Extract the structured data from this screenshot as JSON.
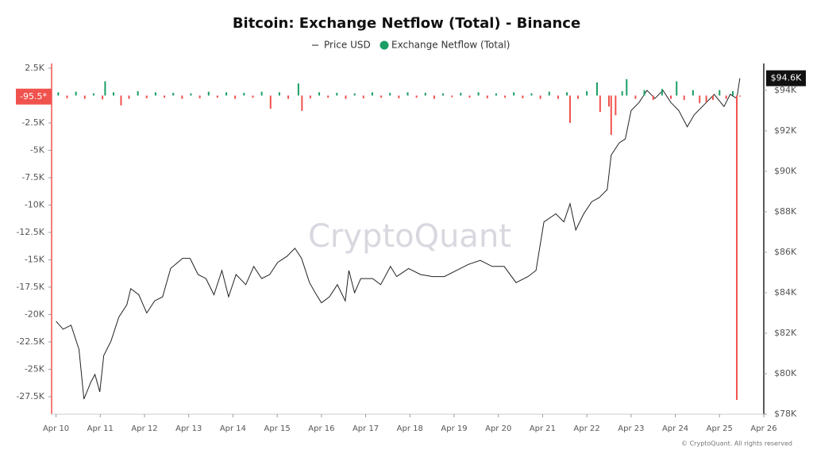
{
  "chart_data": {
    "type": "bar-line",
    "title": "Bitcoin: Exchange Netflow (Total) - Binance",
    "watermark": "CryptoQuant",
    "footer": "© CryptoQuant. All rights reserved",
    "xlim": [
      9.9,
      26
    ],
    "xticks": [
      {
        "value": 10,
        "label": "Apr 10"
      },
      {
        "value": 11,
        "label": "Apr 11"
      },
      {
        "value": 12,
        "label": "Apr 12"
      },
      {
        "value": 13,
        "label": "Apr 13"
      },
      {
        "value": 14,
        "label": "Apr 14"
      },
      {
        "value": 15,
        "label": "Apr 15"
      },
      {
        "value": 16,
        "label": "Apr 16"
      },
      {
        "value": 17,
        "label": "Apr 17"
      },
      {
        "value": 18,
        "label": "Apr 18"
      },
      {
        "value": 19,
        "label": "Apr 19"
      },
      {
        "value": 20,
        "label": "Apr 20"
      },
      {
        "value": 21,
        "label": "Apr 21"
      },
      {
        "value": 22,
        "label": "Apr 22"
      },
      {
        "value": 23,
        "label": "Apr 23"
      },
      {
        "value": 24,
        "label": "Apr 24"
      },
      {
        "value": 25,
        "label": "Apr 25"
      },
      {
        "value": 26,
        "label": "Apr 26"
      }
    ],
    "ylim": [
      -29100,
      2930
    ],
    "yticks": [
      {
        "value": 2500,
        "label": "2.5K"
      },
      {
        "value": -2500,
        "label": "-2.5K"
      },
      {
        "value": -5000,
        "label": "-5K"
      },
      {
        "value": -7500,
        "label": "-7.5K"
      },
      {
        "value": -10000,
        "label": "-10K"
      },
      {
        "value": -12500,
        "label": "-12.5K"
      },
      {
        "value": -15000,
        "label": "-15K"
      },
      {
        "value": -17500,
        "label": "-17.5K"
      },
      {
        "value": -20000,
        "label": "-20K"
      },
      {
        "value": -22500,
        "label": "-22.5K"
      },
      {
        "value": -25000,
        "label": "-25K"
      },
      {
        "value": -27500,
        "label": "-27.5K"
      }
    ],
    "y2lim": [
      78000,
      95330
    ],
    "y2ticks": [
      {
        "value": 78000,
        "label": "$78K"
      },
      {
        "value": 80000,
        "label": "$80K"
      },
      {
        "value": 82000,
        "label": "$82K"
      },
      {
        "value": 84000,
        "label": "$84K"
      },
      {
        "value": 86000,
        "label": "$86K"
      },
      {
        "value": 88000,
        "label": "$88K"
      },
      {
        "value": 90000,
        "label": "$90K"
      },
      {
        "value": 92000,
        "label": "$92K"
      },
      {
        "value": 94000,
        "label": "$94K"
      }
    ],
    "series": [
      {
        "name": "Price USD",
        "type": "line",
        "axis": "y2",
        "color": "#222222",
        "last_label": "$94.6K",
        "x": [
          10.0,
          10.16,
          10.34,
          10.52,
          10.63,
          10.79,
          10.88,
          10.99,
          11.08,
          11.24,
          11.42,
          11.6,
          11.69,
          11.87,
          12.05,
          12.23,
          12.41,
          12.59,
          12.86,
          13.03,
          13.21,
          13.39,
          13.57,
          13.75,
          13.9,
          14.07,
          14.29,
          14.47,
          14.65,
          14.83,
          15.01,
          15.22,
          15.4,
          15.55,
          15.73,
          15.87,
          16.0,
          16.18,
          16.36,
          16.54,
          16.62,
          16.75,
          16.89,
          17.16,
          17.34,
          17.56,
          17.7,
          17.97,
          18.24,
          18.51,
          18.78,
          19.05,
          19.32,
          19.59,
          19.86,
          20.13,
          20.4,
          20.67,
          20.85,
          21.03,
          21.3,
          21.48,
          21.62,
          21.75,
          21.93,
          22.11,
          22.28,
          22.46,
          22.55,
          22.73,
          22.87,
          23.0,
          23.18,
          23.36,
          23.54,
          23.72,
          23.9,
          24.08,
          24.27,
          24.43,
          24.7,
          24.88,
          25.1,
          25.24,
          25.39,
          25.46
        ],
        "values": [
          82590,
          82200,
          82400,
          81200,
          78750,
          79600,
          79960,
          79100,
          80900,
          81600,
          82800,
          83400,
          84200,
          83900,
          83000,
          83600,
          83800,
          85200,
          85700,
          85700,
          84900,
          84700,
          83900,
          85100,
          83800,
          84900,
          84400,
          85300,
          84700,
          84900,
          85500,
          85800,
          86200,
          85700,
          84500,
          83960,
          83500,
          83800,
          84400,
          83600,
          85100,
          84000,
          84700,
          84700,
          84400,
          85300,
          84800,
          85200,
          84900,
          84800,
          84800,
          85100,
          85400,
          85600,
          85300,
          85300,
          84500,
          84800,
          85100,
          87500,
          87900,
          87500,
          88400,
          87100,
          87900,
          88500,
          88700,
          89100,
          90800,
          91400,
          91600,
          93000,
          93400,
          94000,
          93600,
          94000,
          93400,
          93000,
          92200,
          92800,
          93400,
          93800,
          93200,
          93800,
          93600,
          94600
        ]
      },
      {
        "name": "Exchange Netflow (Total)",
        "type": "bar",
        "axis": "y",
        "color": "#1a9e64",
        "color_negative": "#f0524d",
        "last_label": "-95.5*",
        "x": [
          10.05,
          10.25,
          10.45,
          10.65,
          10.85,
          11.05,
          11.11,
          11.3,
          11.47,
          11.65,
          11.85,
          12.05,
          12.25,
          12.45,
          12.65,
          12.85,
          13.05,
          13.25,
          13.45,
          13.65,
          13.85,
          14.05,
          14.25,
          14.45,
          14.65,
          14.85,
          15.05,
          15.25,
          15.48,
          15.56,
          15.75,
          15.95,
          16.15,
          16.35,
          16.55,
          16.75,
          16.95,
          17.15,
          17.35,
          17.55,
          17.75,
          17.95,
          18.15,
          18.35,
          18.55,
          18.75,
          18.95,
          19.15,
          19.35,
          19.55,
          19.75,
          19.95,
          20.15,
          20.35,
          20.55,
          20.75,
          20.95,
          21.15,
          21.35,
          21.55,
          21.62,
          21.8,
          22.0,
          22.23,
          22.3,
          22.5,
          22.55,
          22.65,
          22.8,
          22.9,
          23.1,
          23.3,
          23.5,
          23.7,
          23.9,
          24.03,
          24.2,
          24.4,
          24.55,
          24.7,
          24.85,
          25.0,
          25.15,
          25.3,
          25.39,
          25.46
        ],
        "values": [
          300,
          -250,
          350,
          -300,
          200,
          -350,
          1300,
          300,
          -900,
          -300,
          400,
          -250,
          300,
          -200,
          250,
          -300,
          200,
          -250,
          350,
          -200,
          300,
          -300,
          250,
          -200,
          350,
          -1200,
          300,
          -300,
          1100,
          -1400,
          -250,
          300,
          -200,
          250,
          -300,
          200,
          -250,
          300,
          -200,
          250,
          -250,
          300,
          -200,
          250,
          -300,
          200,
          -150,
          250,
          -200,
          300,
          -250,
          200,
          -200,
          300,
          -250,
          200,
          -300,
          350,
          -300,
          300,
          -2500,
          -300,
          400,
          1200,
          -1500,
          -1000,
          -3600,
          -1800,
          400,
          1500,
          -300,
          500,
          -400,
          600,
          -300,
          1300,
          -400,
          500,
          -700,
          -600,
          -400,
          500,
          -300,
          400,
          -27800,
          -95.5
        ]
      }
    ]
  }
}
